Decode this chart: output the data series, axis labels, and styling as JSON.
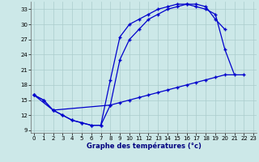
{
  "title": "Graphe des températures (°c)",
  "bg_color": "#cce8e8",
  "grid_color": "#aacccc",
  "line_color": "#0000cc",
  "xlim": [
    -0.3,
    23.3
  ],
  "ylim": [
    8.5,
    34.5
  ],
  "yticks": [
    9,
    12,
    15,
    18,
    21,
    24,
    27,
    30,
    33
  ],
  "xticks": [
    0,
    1,
    2,
    3,
    4,
    5,
    6,
    7,
    8,
    9,
    10,
    11,
    12,
    13,
    14,
    15,
    16,
    17,
    18,
    19,
    20,
    21,
    22,
    23
  ],
  "line1_x": [
    0,
    1,
    2,
    3,
    4,
    5,
    6,
    7,
    8,
    9,
    10,
    11,
    12,
    13,
    14,
    15,
    16,
    17,
    18,
    19,
    20,
    21
  ],
  "line1_y": [
    16,
    15,
    13,
    12,
    11,
    10.5,
    10,
    10,
    19,
    27.5,
    30,
    31,
    32,
    33,
    33.5,
    34,
    34,
    33.5,
    33,
    32,
    25,
    20
  ],
  "line2_x": [
    0,
    1,
    2,
    3,
    4,
    5,
    6,
    7,
    8,
    9,
    10,
    11,
    12,
    13,
    14,
    15,
    16,
    17,
    18,
    19,
    20
  ],
  "line2_y": [
    16,
    15,
    13,
    12,
    11,
    10.5,
    10,
    10,
    14,
    23,
    27,
    29,
    31,
    32,
    33,
    33.5,
    34,
    34,
    33.5,
    31,
    29
  ],
  "line3_x": [
    0,
    2,
    8,
    9,
    10,
    11,
    12,
    13,
    14,
    15,
    16,
    17,
    18,
    19,
    20,
    22
  ],
  "line3_y": [
    16,
    13,
    14,
    14.5,
    15,
    15.5,
    16,
    16.5,
    17,
    17.5,
    18,
    18.5,
    19,
    19.5,
    20,
    20
  ]
}
